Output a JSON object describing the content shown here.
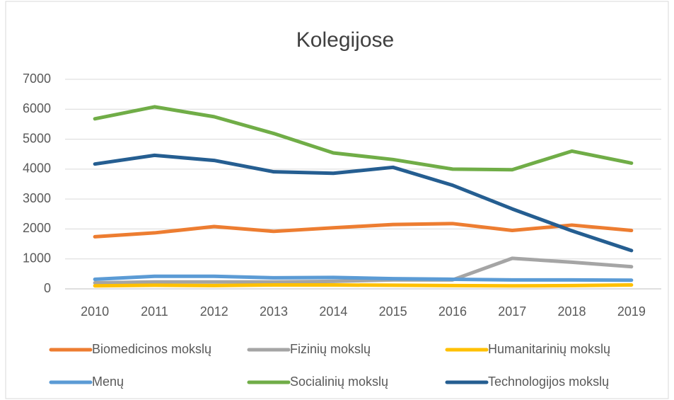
{
  "chart_data": {
    "type": "line",
    "title": "Kolegijose",
    "categories": [
      "2010",
      "2011",
      "2012",
      "2013",
      "2014",
      "2015",
      "2016",
      "2017",
      "2018",
      "2019"
    ],
    "series": [
      {
        "name": "Biomedicinos mokslų",
        "color": "#ed7d31",
        "values": [
          1740,
          1870,
          2080,
          1920,
          2040,
          2150,
          2180,
          1950,
          2130,
          1950
        ]
      },
      {
        "name": "Fizinių mokslų",
        "color": "#a5a5a5",
        "values": [
          200,
          230,
          230,
          230,
          250,
          300,
          300,
          1020,
          890,
          740
        ]
      },
      {
        "name": "Humanitarinių mokslų",
        "color": "#ffc000",
        "values": [
          100,
          120,
          110,
          130,
          130,
          120,
          110,
          100,
          110,
          130
        ]
      },
      {
        "name": "Menų",
        "color": "#5b9bd5",
        "values": [
          320,
          420,
          420,
          370,
          380,
          340,
          320,
          300,
          300,
          290
        ]
      },
      {
        "name": "Socialinių mokslų",
        "color": "#70ad47",
        "values": [
          5680,
          6080,
          5750,
          5190,
          4540,
          4320,
          4000,
          3980,
          4600,
          4200
        ]
      },
      {
        "name": "Technologijos mokslų",
        "color": "#255e91",
        "values": [
          4170,
          4460,
          4290,
          3910,
          3860,
          4060,
          3460,
          2670,
          1940,
          1280
        ]
      }
    ],
    "ylim": [
      0,
      7000
    ],
    "yticks": [
      0,
      1000,
      2000,
      3000,
      4000,
      5000,
      6000,
      7000
    ],
    "grid": true,
    "legend": "bottom"
  }
}
